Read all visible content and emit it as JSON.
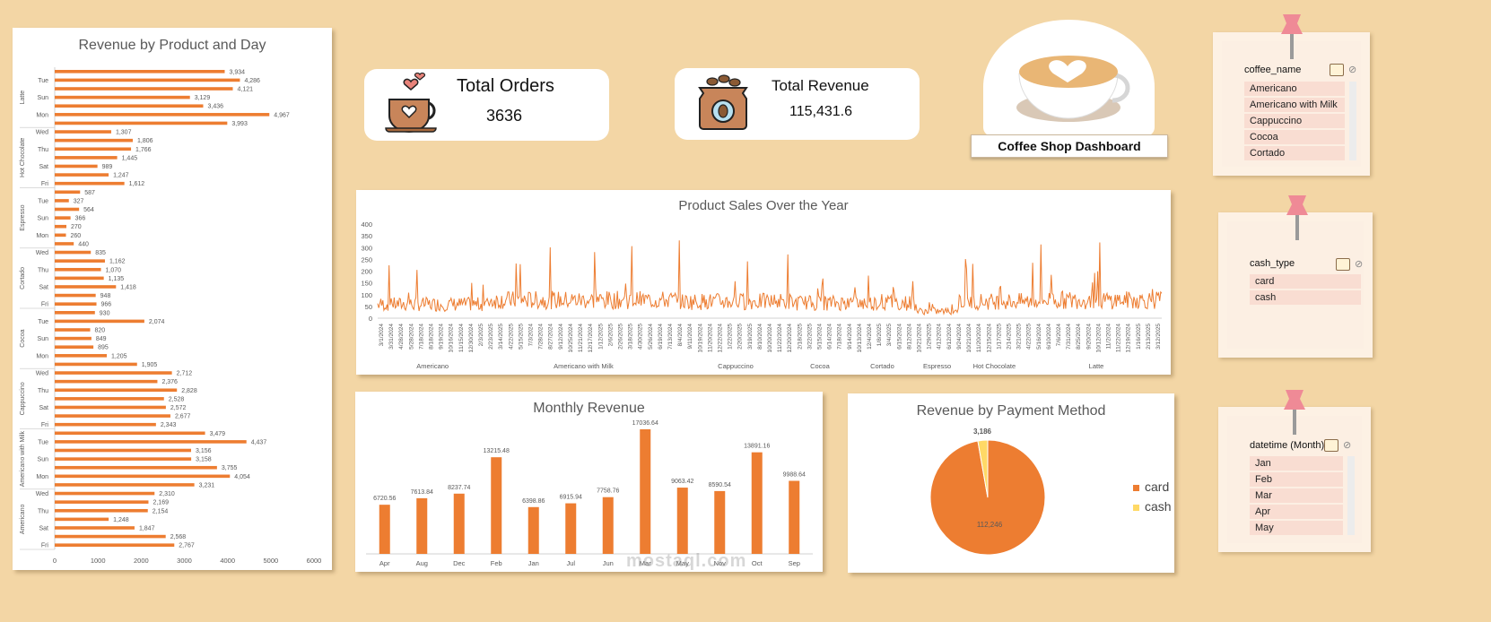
{
  "dashboard_title": "Coffee Shop Dashboard",
  "kpis": {
    "orders_label": "Total Orders",
    "orders_value": "3636",
    "revenue_label": "Total Revenue",
    "revenue_value": "115,431.6"
  },
  "slicers": [
    {
      "header": "coffee_name",
      "items": [
        "Americano",
        "Americano with Milk",
        "Cappuccino",
        "Cocoa",
        "Cortado"
      ]
    },
    {
      "header": "cash_type",
      "items": [
        "card",
        "cash"
      ]
    },
    {
      "header": "datetime (Month)",
      "items": [
        "Jan",
        "Feb",
        "Mar",
        "Apr",
        "May"
      ]
    }
  ],
  "watermark": "mostaql.com",
  "colors": {
    "bar": "#ed7d31",
    "cash": "#ffd966",
    "background": "#f3d6a5"
  },
  "chart_data": [
    {
      "id": "product_day",
      "type": "bar",
      "orientation": "horizontal",
      "title": "Revenue by Product and Day",
      "xlim": [
        0,
        6000
      ],
      "xticks": [
        "0",
        "1000",
        "2000",
        "3000",
        "4000",
        "5000",
        "6000"
      ],
      "groups": [
        {
          "name": "Latte",
          "bars": [
            {
              "day": "",
              "value": 3934,
              "label": "3,934"
            },
            {
              "day": "Tue",
              "value": 4286,
              "label": "4,286"
            },
            {
              "day": "",
              "value": 4121,
              "label": "4,121"
            },
            {
              "day": "Sun",
              "value": 3129,
              "label": "3,129"
            },
            {
              "day": "",
              "value": 3436,
              "label": "3,436"
            },
            {
              "day": "Mon",
              "value": 4967,
              "label": "4,967"
            },
            {
              "day": "",
              "value": 3993,
              "label": "3,993"
            }
          ]
        },
        {
          "name": "Hot Chocolate",
          "bars": [
            {
              "day": "Wed",
              "value": 1307,
              "label": "1,307"
            },
            {
              "day": "",
              "value": 1806,
              "label": "1,806"
            },
            {
              "day": "Thu",
              "value": 1766,
              "label": "1,766"
            },
            {
              "day": "",
              "value": 1445,
              "label": "1,445"
            },
            {
              "day": "Sat",
              "value": 989,
              "label": "989"
            },
            {
              "day": "",
              "value": 1247,
              "label": "1,247"
            },
            {
              "day": "Fri",
              "value": 1612,
              "label": "1,612"
            }
          ]
        },
        {
          "name": "Espresso",
          "bars": [
            {
              "day": "",
              "value": 587,
              "label": "587"
            },
            {
              "day": "Tue",
              "value": 327,
              "label": "327"
            },
            {
              "day": "",
              "value": 564,
              "label": "564"
            },
            {
              "day": "Sun",
              "value": 366,
              "label": "366"
            },
            {
              "day": "",
              "value": 270,
              "label": "270"
            },
            {
              "day": "Mon",
              "value": 260,
              "label": "260"
            },
            {
              "day": "",
              "value": 440,
              "label": "440"
            }
          ]
        },
        {
          "name": "Cortado",
          "bars": [
            {
              "day": "Wed",
              "value": 835,
              "label": "835"
            },
            {
              "day": "",
              "value": 1162,
              "label": "1,162"
            },
            {
              "day": "Thu",
              "value": 1070,
              "label": "1,070"
            },
            {
              "day": "",
              "value": 1135,
              "label": "1,135"
            },
            {
              "day": "Sat",
              "value": 1418,
              "label": "1,418"
            },
            {
              "day": "",
              "value": 948,
              "label": "948"
            },
            {
              "day": "Fri",
              "value": 966,
              "label": "966"
            }
          ]
        },
        {
          "name": "Cocoa",
          "bars": [
            {
              "day": "",
              "value": 930,
              "label": "930"
            },
            {
              "day": "Tue",
              "value": 2074,
              "label": "2,074"
            },
            {
              "day": "",
              "value": 820,
              "label": "820"
            },
            {
              "day": "Sun",
              "value": 849,
              "label": "849"
            },
            {
              "day": "",
              "value": 895,
              "label": "895"
            },
            {
              "day": "Mon",
              "value": 1205,
              "label": "1,205"
            },
            {
              "day": "",
              "value": 1905,
              "label": "1,905"
            }
          ]
        },
        {
          "name": "Cappuccino",
          "bars": [
            {
              "day": "Wed",
              "value": 2712,
              "label": "2,712"
            },
            {
              "day": "",
              "value": 2376,
              "label": "2,376"
            },
            {
              "day": "Thu",
              "value": 2828,
              "label": "2,828"
            },
            {
              "day": "",
              "value": 2528,
              "label": "2,528"
            },
            {
              "day": "Sat",
              "value": 2572,
              "label": "2,572"
            },
            {
              "day": "",
              "value": 2677,
              "label": "2,677"
            },
            {
              "day": "Fri",
              "value": 2343,
              "label": "2,343"
            }
          ]
        },
        {
          "name": "Americano with Milk",
          "bars": [
            {
              "day": "",
              "value": 3479,
              "label": "3,479"
            },
            {
              "day": "Tue",
              "value": 4437,
              "label": "4,437"
            },
            {
              "day": "",
              "value": 3156,
              "label": "3,156"
            },
            {
              "day": "Sun",
              "value": 3158,
              "label": "3,158"
            },
            {
              "day": "",
              "value": 3755,
              "label": "3,755"
            },
            {
              "day": "Mon",
              "value": 4054,
              "label": "4,054"
            },
            {
              "day": "",
              "value": 3231,
              "label": "3,231"
            }
          ]
        },
        {
          "name": "Americano",
          "bars": [
            {
              "day": "Wed",
              "value": 2310,
              "label": "2,310"
            },
            {
              "day": "",
              "value": 2169,
              "label": "2,169"
            },
            {
              "day": "Thu",
              "value": 2154,
              "label": "2,154"
            },
            {
              "day": "",
              "value": 1248,
              "label": "1,248"
            },
            {
              "day": "Sat",
              "value": 1847,
              "label": "1,847"
            },
            {
              "day": "",
              "value": 2568,
              "label": "2,568"
            },
            {
              "day": "Fri",
              "value": 2767,
              "label": "2,767"
            }
          ]
        }
      ]
    },
    {
      "id": "sales_year",
      "type": "line",
      "title": "Product Sales Over the Year",
      "ylim": [
        0,
        400
      ],
      "yticks": [
        "0",
        "50",
        "100",
        "150",
        "200",
        "250",
        "300",
        "350",
        "400"
      ],
      "date_labels": [
        "3/1/2024",
        "3/31/2024",
        "4/28/2024",
        "5/28/2024",
        "7/18/2024",
        "8/18/2024",
        "9/19/2024",
        "10/16/2024",
        "11/15/2024",
        "12/30/2024",
        "2/3/2025",
        "2/23/2025",
        "3/14/2025",
        "4/22/2025",
        "5/15/2025",
        "7/3/2024",
        "7/28/2024",
        "8/27/2024",
        "9/12/2024",
        "10/25/2024",
        "11/21/2024",
        "12/17/2024",
        "1/12/2025",
        "2/6/2025",
        "2/26/2025",
        "3/18/2025",
        "4/30/2025",
        "5/26/2024",
        "6/19/2024",
        "7/13/2024",
        "8/4/2024",
        "9/11/2024",
        "10/19/2024",
        "11/20/2024",
        "12/22/2024",
        "1/22/2025",
        "2/20/2025",
        "3/19/2025",
        "8/10/2024",
        "10/20/2024",
        "11/22/2024",
        "12/20/2024",
        "2/18/2025",
        "3/22/2025",
        "5/15/2024",
        "6/14/2024",
        "7/18/2024",
        "9/14/2024",
        "10/13/2024",
        "12/4/2024",
        "1/8/2025",
        "3/4/2025",
        "6/15/2024",
        "8/12/2024",
        "10/21/2024",
        "1/29/2025",
        "4/12/2024",
        "6/12/2024",
        "9/24/2024",
        "10/21/2024",
        "11/20/2024",
        "12/15/2024",
        "1/17/2025",
        "2/14/2025",
        "3/21/2025",
        "4/22/2025",
        "5/16/2024",
        "6/10/2024",
        "7/6/2024",
        "7/31/2024",
        "8/25/2024",
        "9/20/2024",
        "10/12/2024",
        "11/2/2024",
        "11/22/2024",
        "12/19/2024",
        "1/16/2025",
        "2/13/2025",
        "3/12/2025"
      ],
      "categories": [
        {
          "name": "Americano",
          "from": 0,
          "to": 0.14
        },
        {
          "name": "Americano with Milk",
          "from": 0.14,
          "to": 0.385
        },
        {
          "name": "Cappuccino",
          "from": 0.385,
          "to": 0.528
        },
        {
          "name": "Cocoa",
          "from": 0.528,
          "to": 0.6
        },
        {
          "name": "Cortado",
          "from": 0.6,
          "to": 0.687
        },
        {
          "name": "Espresso",
          "from": 0.687,
          "to": 0.74
        },
        {
          "name": "Hot Chocolate",
          "from": 0.74,
          "to": 0.833
        },
        {
          "name": "Latte",
          "from": 0.833,
          "to": 1.0
        }
      ],
      "category_base": [
        50,
        65,
        60,
        55,
        55,
        25,
        60,
        65
      ],
      "category_peak": [
        230,
        335,
        300,
        250,
        220,
        90,
        260,
        330
      ]
    },
    {
      "id": "monthly",
      "type": "bar",
      "title": "Monthly Revenue",
      "categories": [
        "Apr",
        "Aug",
        "Dec",
        "Feb",
        "Jan",
        "Jul",
        "Jun",
        "Mar",
        "May",
        "Nov",
        "Oct",
        "Sep"
      ],
      "values": [
        6720.56,
        7613.84,
        8237.74,
        13215.48,
        6398.86,
        6915.94,
        7758.76,
        17036.64,
        9063.42,
        8590.54,
        13891.16,
        9988.64
      ],
      "labels": [
        "6720.56",
        "7613.84",
        "8237.74",
        "13215.48",
        "6398.86",
        "6915.94",
        "7758.76",
        "17036.64",
        "9063.42",
        "8590.54",
        "13891.16",
        "9988.64"
      ],
      "ylim": [
        0,
        17036.64
      ]
    },
    {
      "id": "payment",
      "type": "pie",
      "title": "Revenue by Payment Method",
      "slices": [
        {
          "name": "card",
          "value": 112246,
          "label": "112,246"
        },
        {
          "name": "cash",
          "value": 3186,
          "label": "3,186"
        }
      ],
      "legend": "right"
    }
  ]
}
